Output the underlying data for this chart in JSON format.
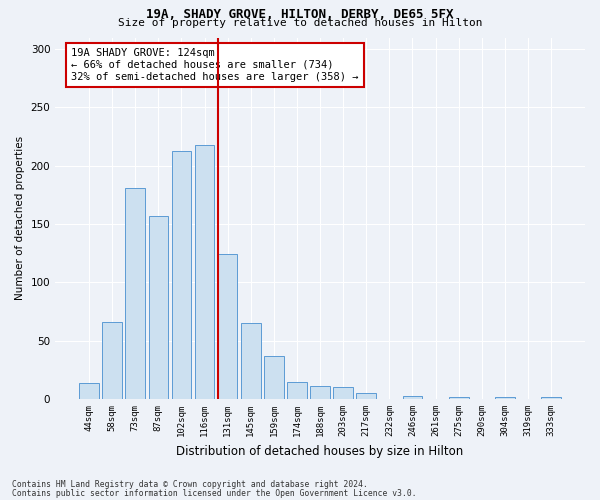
{
  "title1": "19A, SHADY GROVE, HILTON, DERBY, DE65 5FX",
  "title2": "Size of property relative to detached houses in Hilton",
  "xlabel": "Distribution of detached houses by size in Hilton",
  "ylabel": "Number of detached properties",
  "bar_labels": [
    "44sqm",
    "58sqm",
    "73sqm",
    "87sqm",
    "102sqm",
    "116sqm",
    "131sqm",
    "145sqm",
    "159sqm",
    "174sqm",
    "188sqm",
    "203sqm",
    "217sqm",
    "232sqm",
    "246sqm",
    "261sqm",
    "275sqm",
    "290sqm",
    "304sqm",
    "319sqm",
    "333sqm"
  ],
  "bar_values": [
    14,
    66,
    181,
    157,
    213,
    218,
    124,
    65,
    37,
    15,
    11,
    10,
    5,
    0,
    3,
    0,
    2,
    0,
    2,
    0,
    2
  ],
  "bar_color": "#cce0f0",
  "bar_edgecolor": "#5b9bd5",
  "vline_color": "#cc0000",
  "annotation_text": "19A SHADY GROVE: 124sqm\n← 66% of detached houses are smaller (734)\n32% of semi-detached houses are larger (358) →",
  "annotation_box_edgecolor": "#cc0000",
  "annotation_box_facecolor": "#ffffff",
  "ylim": [
    0,
    310
  ],
  "yticks": [
    0,
    50,
    100,
    150,
    200,
    250,
    300
  ],
  "footnote1": "Contains HM Land Registry data © Crown copyright and database right 2024.",
  "footnote2": "Contains public sector information licensed under the Open Government Licence v3.0.",
  "bg_color": "#eef2f8",
  "plot_bg_color": "#eef2f8"
}
